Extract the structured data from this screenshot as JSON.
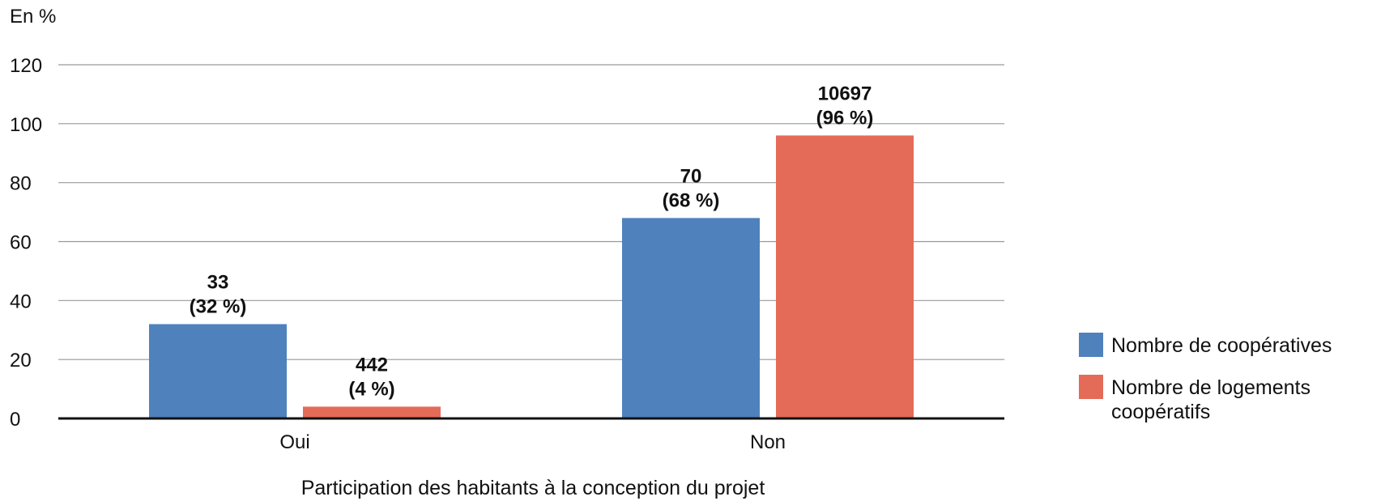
{
  "chart_data": {
    "type": "bar",
    "ylabel": "En %",
    "xlabel": "Participation des habitants à la conception du projet",
    "ylim": [
      0,
      120
    ],
    "yticks": [
      0,
      20,
      40,
      60,
      80,
      100,
      120
    ],
    "grid": true,
    "legend_position": "right",
    "categories": [
      "Oui",
      "Non"
    ],
    "series": [
      {
        "name": "Nombre de coopératives",
        "color": "#4f81bd",
        "values": [
          32,
          68
        ],
        "labels": [
          [
            "33",
            "(32 %)"
          ],
          [
            "70",
            "(68 %)"
          ]
        ]
      },
      {
        "name": "Nombre de logements coopératifs",
        "name_lines": [
          "Nombre de logements",
          "coopératifs"
        ],
        "color": "#e46b57",
        "values": [
          4,
          96
        ],
        "labels": [
          [
            "442",
            "(4 %)"
          ],
          [
            "10697",
            "(96 %)"
          ]
        ]
      }
    ]
  }
}
